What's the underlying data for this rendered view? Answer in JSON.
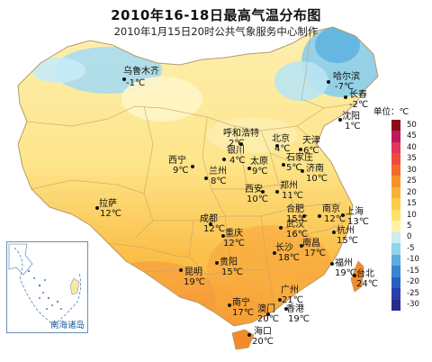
{
  "title": "2010年16-18日最高气温分布图",
  "subtitle": "2010年1月15日20时公共气象服务中心制作",
  "legend": {
    "unit_label": "单位：℃",
    "ticks": [
      "50",
      "45",
      "40",
      "35",
      "30",
      "25",
      "20",
      "15",
      "10",
      "5",
      "0",
      "-5",
      "-10",
      "-15",
      "-20",
      "-25",
      "-30"
    ],
    "colors": [
      "#8b0a1a",
      "#c2185b",
      "#e0365a",
      "#ef4b3a",
      "#f36b28",
      "#f79229",
      "#fab134",
      "#fccb47",
      "#fde26a",
      "#fff2a6",
      "#c9ecf5",
      "#8fd3ec",
      "#5aaee0",
      "#3a84d0",
      "#2a5fbd",
      "#2a3ea8",
      "#2a2a8a"
    ]
  },
  "inset_label": "南海诸岛",
  "cities": [
    {
      "name": "乌鲁木齐",
      "temp": "-1℃"
    },
    {
      "name": "哈尔滨",
      "temp": "-7℃"
    },
    {
      "name": "长春",
      "temp": "-2℃"
    },
    {
      "name": "沈阳",
      "temp": "1℃"
    },
    {
      "name": "呼和浩特",
      "temp": "2℃"
    },
    {
      "name": "北京",
      "temp": "4℃"
    },
    {
      "name": "天津",
      "temp": "6℃"
    },
    {
      "name": "银川",
      "temp": "4℃"
    },
    {
      "name": "石家庄",
      "temp": "5℃"
    },
    {
      "name": "太原",
      "temp": "9℃"
    },
    {
      "name": "西宁",
      "temp": "9℃"
    },
    {
      "name": "兰州",
      "temp": "8℃"
    },
    {
      "name": "济南",
      "temp": "10℃"
    },
    {
      "name": "郑州",
      "temp": "11℃"
    },
    {
      "name": "西安",
      "temp": "10℃"
    },
    {
      "name": "拉萨",
      "temp": "12℃"
    },
    {
      "name": "合肥",
      "temp": "15℃"
    },
    {
      "name": "南京",
      "temp": "12℃"
    },
    {
      "name": "上海",
      "temp": "13℃"
    },
    {
      "name": "成都",
      "temp": "12℃"
    },
    {
      "name": "武汉",
      "temp": "16℃"
    },
    {
      "name": "杭州",
      "temp": "15℃"
    },
    {
      "name": "重庆",
      "temp": "12℃"
    },
    {
      "name": "长沙",
      "temp": "18℃"
    },
    {
      "name": "南昌",
      "temp": "17℃"
    },
    {
      "name": "贵阳",
      "temp": "15℃"
    },
    {
      "name": "福州",
      "temp": "19℃"
    },
    {
      "name": "台北",
      "temp": "24℃"
    },
    {
      "name": "昆明",
      "temp": "19℃"
    },
    {
      "name": "广州",
      "temp": "21℃"
    },
    {
      "name": "南宁",
      "temp": "17℃"
    },
    {
      "name": "澳门",
      "temp": "20℃"
    },
    {
      "name": "香港",
      "temp": "19℃"
    },
    {
      "name": "海口",
      "temp": "20℃"
    }
  ]
}
